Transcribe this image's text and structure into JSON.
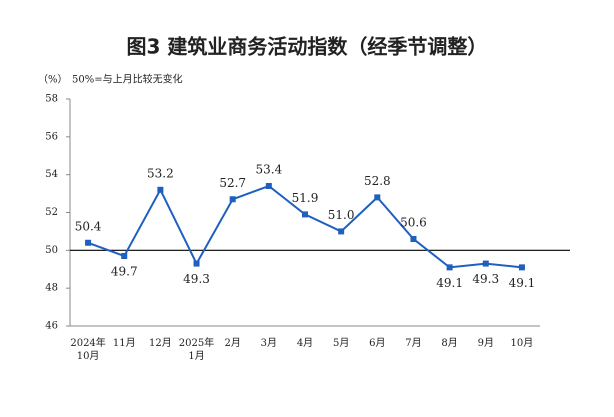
{
  "chart_data": {
    "type": "line",
    "title": "图3 建筑业商务活动指数（经季节调整）",
    "y_unit": "（%）",
    "annotation": "50%=与上月比较无变化",
    "categories": [
      "2024年\n10月",
      "11月",
      "12月",
      "2025年\n1月",
      "2月",
      "3月",
      "4月",
      "5月",
      "6月",
      "7月",
      "8月",
      "9月",
      "10月"
    ],
    "series": [
      {
        "color": "#1f5fbf",
        "values": [
          50.4,
          49.7,
          53.2,
          49.3,
          52.7,
          53.4,
          51.9,
          51.0,
          52.8,
          50.6,
          49.1,
          49.3,
          49.1
        ],
        "value_labels": [
          "50.4",
          "49.7",
          "53.2",
          "49.3",
          "52.7",
          "53.4",
          "51.9",
          "51.0",
          "52.8",
          "50.6",
          "49.1",
          "49.3",
          "49.1"
        ]
      }
    ],
    "ylim": [
      46,
      58
    ],
    "yticks": [
      46,
      48,
      50,
      52,
      54,
      56,
      58
    ],
    "reference_line": 50,
    "grid": false
  }
}
